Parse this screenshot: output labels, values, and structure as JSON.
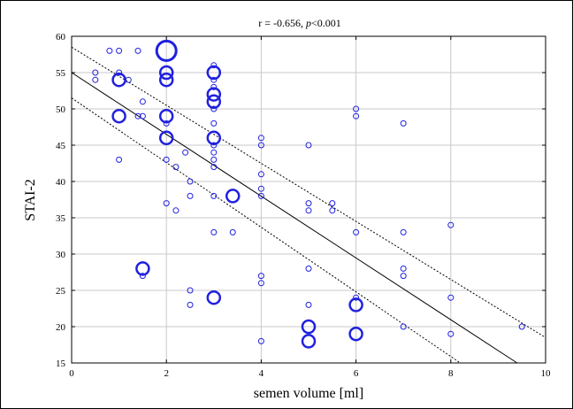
{
  "chart_data": {
    "type": "scatter",
    "title_parts": {
      "pre": "r = -0.656, ",
      "italic": "p",
      "post": "<0.001"
    },
    "xlabel": "semen volume [ml]",
    "ylabel": "STAI-2",
    "xlim": [
      0,
      10
    ],
    "ylim": [
      15,
      60
    ],
    "xticks": [
      "0",
      "2",
      "4",
      "6",
      "8",
      "10"
    ],
    "yticks": [
      "15",
      "20",
      "25",
      "30",
      "35",
      "40",
      "45",
      "50",
      "55",
      "60"
    ],
    "grid": true,
    "marker_color": "#2020e0",
    "regression": {
      "x": [
        0,
        9.4
      ],
      "y": [
        55.0,
        15.0
      ]
    },
    "ci_upper": {
      "x": [
        0,
        10
      ],
      "y": [
        58.5,
        18.5
      ]
    },
    "ci_lower": {
      "x": [
        0,
        8.2
      ],
      "y": [
        51.5,
        15.0
      ]
    },
    "points": [
      {
        "x": 0.5,
        "y": 55,
        "n": 1
      },
      {
        "x": 0.5,
        "y": 54,
        "n": 1
      },
      {
        "x": 0.8,
        "y": 58,
        "n": 1
      },
      {
        "x": 1.0,
        "y": 58,
        "n": 1
      },
      {
        "x": 1.0,
        "y": 54,
        "n": 2
      },
      {
        "x": 1.0,
        "y": 49,
        "n": 2
      },
      {
        "x": 1.0,
        "y": 55,
        "n": 1
      },
      {
        "x": 1.0,
        "y": 43,
        "n": 1
      },
      {
        "x": 1.2,
        "y": 54,
        "n": 1
      },
      {
        "x": 1.4,
        "y": 58,
        "n": 1
      },
      {
        "x": 1.4,
        "y": 49,
        "n": 1
      },
      {
        "x": 1.5,
        "y": 49,
        "n": 1
      },
      {
        "x": 1.5,
        "y": 51,
        "n": 1
      },
      {
        "x": 1.5,
        "y": 27,
        "n": 1
      },
      {
        "x": 1.5,
        "y": 28,
        "n": 2
      },
      {
        "x": 2.0,
        "y": 58,
        "n": 3
      },
      {
        "x": 2.0,
        "y": 55,
        "n": 2
      },
      {
        "x": 2.0,
        "y": 54,
        "n": 2
      },
      {
        "x": 2.0,
        "y": 49,
        "n": 2
      },
      {
        "x": 2.0,
        "y": 46,
        "n": 2
      },
      {
        "x": 2.0,
        "y": 48,
        "n": 1
      },
      {
        "x": 2.0,
        "y": 43,
        "n": 1
      },
      {
        "x": 2.0,
        "y": 37,
        "n": 1
      },
      {
        "x": 2.2,
        "y": 42,
        "n": 1
      },
      {
        "x": 2.2,
        "y": 36,
        "n": 1
      },
      {
        "x": 2.4,
        "y": 44,
        "n": 1
      },
      {
        "x": 2.5,
        "y": 40,
        "n": 1
      },
      {
        "x": 2.5,
        "y": 38,
        "n": 1
      },
      {
        "x": 2.5,
        "y": 25,
        "n": 1
      },
      {
        "x": 2.5,
        "y": 23,
        "n": 1
      },
      {
        "x": 3.0,
        "y": 56,
        "n": 1
      },
      {
        "x": 3.0,
        "y": 55,
        "n": 2
      },
      {
        "x": 3.0,
        "y": 54,
        "n": 1
      },
      {
        "x": 3.0,
        "y": 53,
        "n": 1
      },
      {
        "x": 3.0,
        "y": 52,
        "n": 2
      },
      {
        "x": 3.0,
        "y": 51,
        "n": 2
      },
      {
        "x": 3.0,
        "y": 50,
        "n": 1
      },
      {
        "x": 3.0,
        "y": 48,
        "n": 1
      },
      {
        "x": 3.0,
        "y": 46,
        "n": 2
      },
      {
        "x": 3.0,
        "y": 45,
        "n": 1
      },
      {
        "x": 3.0,
        "y": 44,
        "n": 1
      },
      {
        "x": 3.0,
        "y": 43,
        "n": 1
      },
      {
        "x": 3.0,
        "y": 42,
        "n": 1
      },
      {
        "x": 3.0,
        "y": 38,
        "n": 1
      },
      {
        "x": 3.0,
        "y": 33,
        "n": 1
      },
      {
        "x": 3.0,
        "y": 24,
        "n": 2
      },
      {
        "x": 3.4,
        "y": 38,
        "n": 2
      },
      {
        "x": 3.4,
        "y": 33,
        "n": 1
      },
      {
        "x": 4.0,
        "y": 46,
        "n": 1
      },
      {
        "x": 4.0,
        "y": 45,
        "n": 1
      },
      {
        "x": 4.0,
        "y": 41,
        "n": 1
      },
      {
        "x": 4.0,
        "y": 39,
        "n": 1
      },
      {
        "x": 4.0,
        "y": 38,
        "n": 1
      },
      {
        "x": 4.0,
        "y": 27,
        "n": 1
      },
      {
        "x": 4.0,
        "y": 26,
        "n": 1
      },
      {
        "x": 4.0,
        "y": 18,
        "n": 1
      },
      {
        "x": 5.0,
        "y": 45,
        "n": 1
      },
      {
        "x": 5.0,
        "y": 37,
        "n": 1
      },
      {
        "x": 5.0,
        "y": 36,
        "n": 1
      },
      {
        "x": 5.0,
        "y": 28,
        "n": 1
      },
      {
        "x": 5.0,
        "y": 23,
        "n": 1
      },
      {
        "x": 5.0,
        "y": 20,
        "n": 2
      },
      {
        "x": 5.0,
        "y": 18,
        "n": 2
      },
      {
        "x": 5.5,
        "y": 37,
        "n": 1
      },
      {
        "x": 5.5,
        "y": 36,
        "n": 1
      },
      {
        "x": 6.0,
        "y": 50,
        "n": 1
      },
      {
        "x": 6.0,
        "y": 49,
        "n": 1
      },
      {
        "x": 6.0,
        "y": 33,
        "n": 1
      },
      {
        "x": 6.0,
        "y": 24,
        "n": 1
      },
      {
        "x": 6.0,
        "y": 23,
        "n": 2
      },
      {
        "x": 6.0,
        "y": 19,
        "n": 2
      },
      {
        "x": 7.0,
        "y": 48,
        "n": 1
      },
      {
        "x": 7.0,
        "y": 33,
        "n": 1
      },
      {
        "x": 7.0,
        "y": 28,
        "n": 1
      },
      {
        "x": 7.0,
        "y": 27,
        "n": 1
      },
      {
        "x": 7.0,
        "y": 20,
        "n": 1
      },
      {
        "x": 8.0,
        "y": 34,
        "n": 1
      },
      {
        "x": 8.0,
        "y": 24,
        "n": 1
      },
      {
        "x": 8.0,
        "y": 19,
        "n": 1
      },
      {
        "x": 9.5,
        "y": 20,
        "n": 1
      }
    ]
  }
}
